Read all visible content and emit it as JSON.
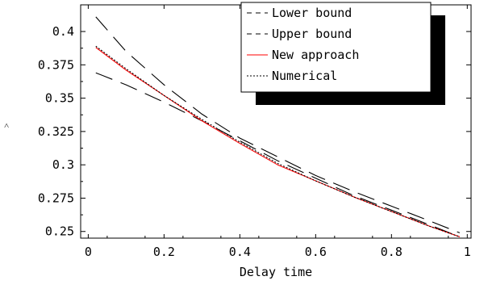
{
  "chart_data": {
    "type": "line",
    "title": "",
    "xlabel": "Delay time",
    "ylabel": "",
    "xlim": [
      -0.02,
      1.01
    ],
    "ylim": [
      0.245,
      0.42
    ],
    "xticks": [
      0,
      0.2,
      0.4,
      0.6,
      0.8,
      1
    ],
    "xtick_labels": [
      "0",
      "0.2",
      "0.4",
      "0.6",
      "0.8",
      "1"
    ],
    "yticks": [
      0.25,
      0.275,
      0.3,
      0.325,
      0.35,
      0.375,
      0.4
    ],
    "ytick_labels": [
      "0.25",
      "0.275",
      "0.3",
      "0.325",
      "0.35",
      "0.375",
      "0.4"
    ],
    "grid": false,
    "legend_position": "top-right",
    "series": [
      {
        "name": "Lower bound",
        "color": "#000000",
        "dash": "long-dash",
        "x": [
          0.02,
          0.1,
          0.2,
          0.3,
          0.4,
          0.5,
          0.6,
          0.7,
          0.8,
          0.9,
          0.98
        ],
        "y": [
          0.369,
          0.36,
          0.347,
          0.333,
          0.318,
          0.303,
          0.29,
          0.277,
          0.266,
          0.255,
          0.246
        ]
      },
      {
        "name": "Upper bound",
        "color": "#000000",
        "dash": "long-dash",
        "x": [
          0.02,
          0.1,
          0.2,
          0.3,
          0.4,
          0.5,
          0.6,
          0.7,
          0.8,
          0.9,
          0.98
        ],
        "y": [
          0.411,
          0.385,
          0.36,
          0.338,
          0.32,
          0.306,
          0.292,
          0.28,
          0.269,
          0.258,
          0.249
        ]
      },
      {
        "name": "New approach",
        "color": "#ff0000",
        "dash": "solid",
        "x": [
          0.02,
          0.1,
          0.2,
          0.3,
          0.4,
          0.5,
          0.6,
          0.7,
          0.8,
          0.9,
          0.98
        ],
        "y": [
          0.388,
          0.371,
          0.352,
          0.333,
          0.316,
          0.3,
          0.288,
          0.276,
          0.265,
          0.254,
          0.246
        ]
      },
      {
        "name": "Numerical",
        "color": "#000000",
        "dash": "dotted",
        "x": [
          0.02,
          0.1,
          0.2,
          0.3,
          0.4,
          0.5,
          0.6,
          0.7,
          0.8,
          0.9,
          0.98
        ],
        "y": [
          0.389,
          0.372,
          0.352,
          0.334,
          0.317,
          0.301,
          0.288,
          0.276,
          0.265,
          0.254,
          0.246
        ]
      }
    ]
  }
}
